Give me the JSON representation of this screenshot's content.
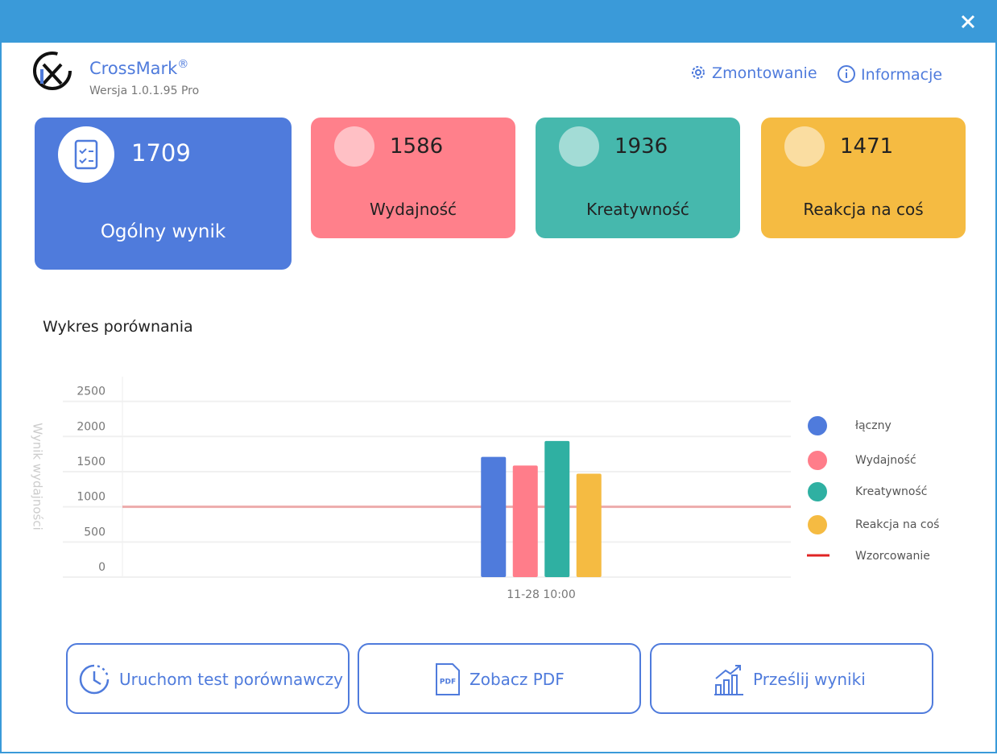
{
  "header": {
    "app_name": "CrossMark",
    "trademark": "®",
    "version": "Wersja 1.0.1.95 Pro"
  },
  "nav": [
    "Zmontowanie",
    "Informacje"
  ],
  "scores": [
    {
      "value": 1709,
      "label": "Ogólny wynik"
    },
    {
      "value": 1586,
      "label": "Wydajność"
    },
    {
      "value": 1936,
      "label": "Kreatywność"
    },
    {
      "value": 1471,
      "label": "Reakcja na coś"
    }
  ],
  "chart_data": {
    "type": "bar",
    "title": "Wykres porównania",
    "y_label": "Wynik wydajności",
    "categories": [
      "11-28 10:00"
    ],
    "series": [
      {
        "name": "łączny",
        "color": "#4f7bdc",
        "values": [
          1709
        ]
      },
      {
        "name": "Wydajność",
        "color": "#ff7d8a",
        "values": [
          1586
        ]
      },
      {
        "name": "Kreatywność",
        "color": "#2fb0a2",
        "values": [
          1936
        ]
      },
      {
        "name": "Reakcja na coś",
        "color": "#f5bb42",
        "values": [
          1471
        ]
      }
    ],
    "reference": {
      "name": "Wzorcowanie",
      "value": 1000,
      "color": "#e02424"
    },
    "ylim": [
      0,
      2850
    ],
    "yticks": [
      0,
      500,
      1000,
      1500,
      2000,
      2500
    ],
    "grid": true
  },
  "buttons": [
    {
      "label": "Uruchom test porównawczy"
    },
    {
      "label": "Zobacz PDF",
      "icon_text": "PDF"
    },
    {
      "label": "Prześlij wyniki"
    }
  ]
}
